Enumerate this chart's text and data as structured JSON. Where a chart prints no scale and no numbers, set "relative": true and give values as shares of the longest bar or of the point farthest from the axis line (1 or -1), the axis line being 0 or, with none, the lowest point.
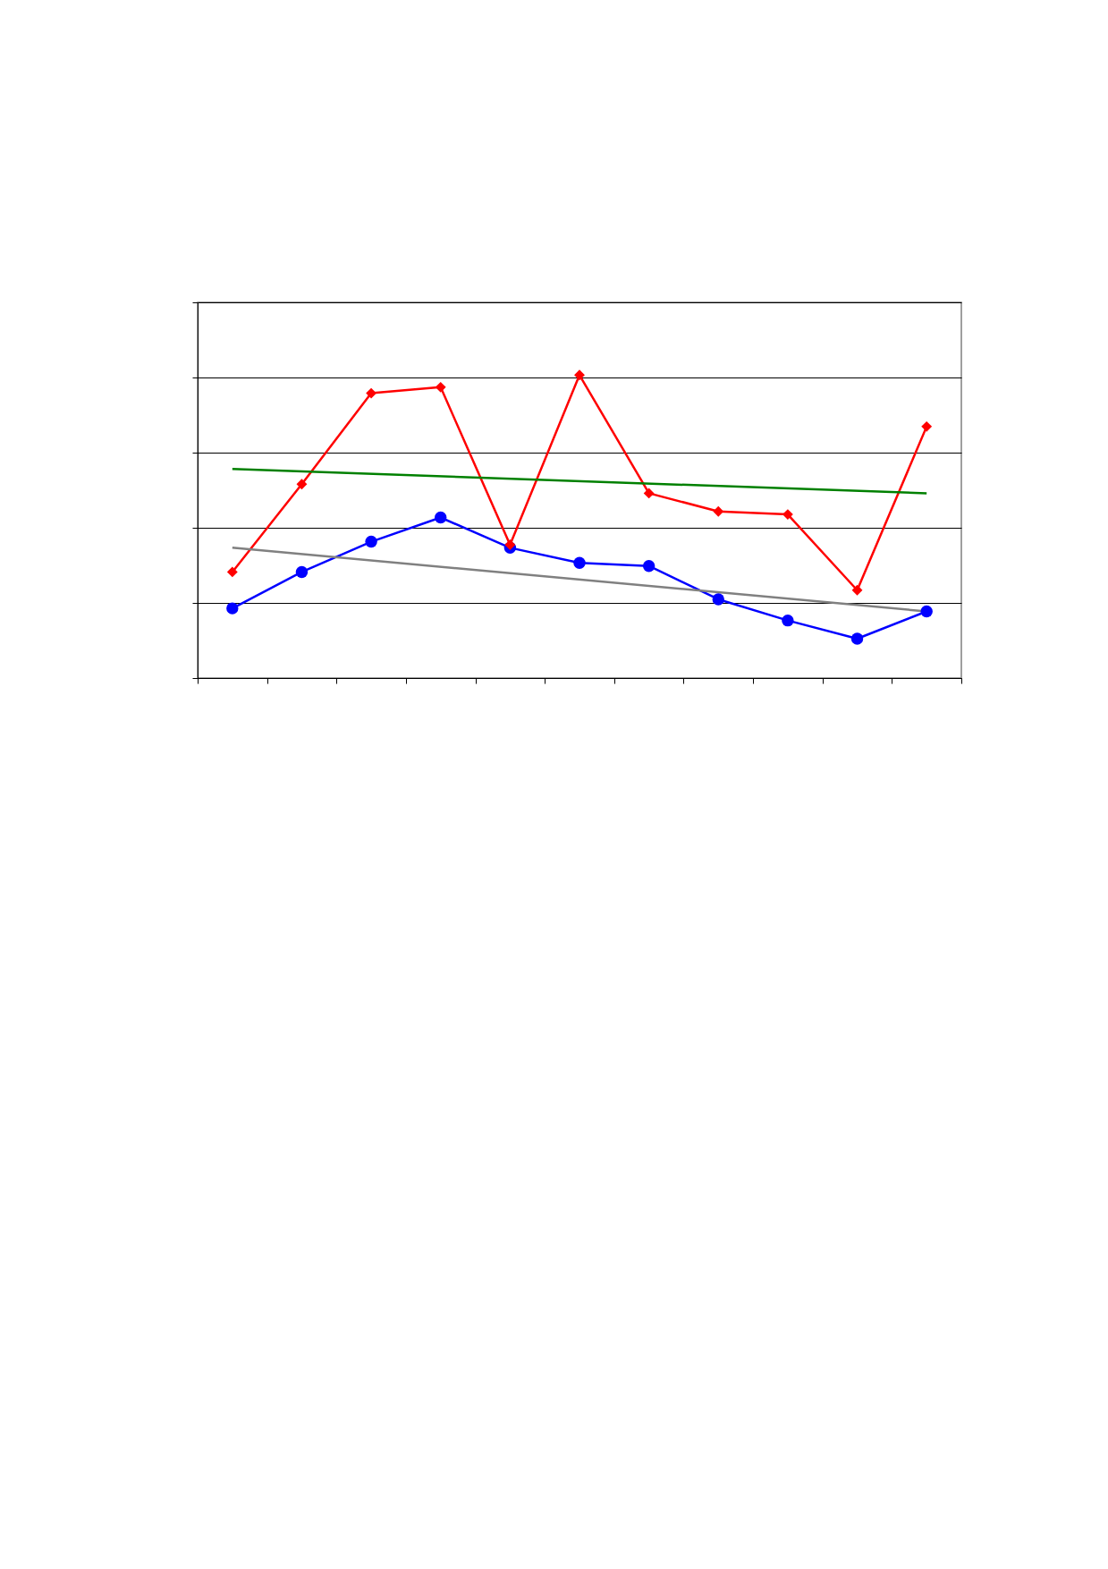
{
  "chart_data": {
    "type": "line",
    "relative": true,
    "categories": [
      null,
      null,
      null,
      null,
      null,
      null,
      null,
      null,
      null,
      null,
      null
    ],
    "series": [
      {
        "color": "#0000ff",
        "marker": "circle",
        "values": [
          0.23,
          0.35,
          0.45,
          0.53,
          0.43,
          0.38,
          0.37,
          0.26,
          0.19,
          0.13,
          0.22
        ]
      },
      {
        "color": "#ff0000",
        "marker": "diamond",
        "values": [
          0.35,
          0.64,
          0.94,
          0.96,
          0.44,
          1.0,
          0.61,
          0.55,
          0.54,
          0.29,
          0.83
        ]
      },
      {
        "color": "#808080",
        "marker": "none",
        "values": [
          0.43,
          null,
          null,
          null,
          null,
          null,
          null,
          null,
          null,
          null,
          0.22
        ]
      },
      {
        "color": "#008000",
        "marker": "none",
        "values": [
          0.69,
          null,
          null,
          null,
          null,
          null,
          null,
          null,
          null,
          null,
          0.61
        ]
      }
    ],
    "grid": "y"
  }
}
